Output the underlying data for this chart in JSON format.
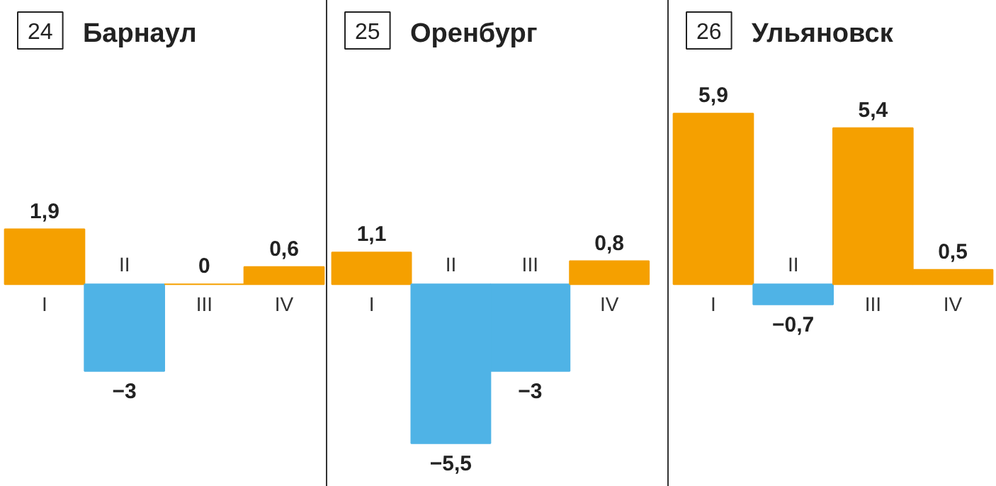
{
  "chart_data": [
    {
      "type": "bar",
      "title": "Барнаул",
      "annotations": [
        "24"
      ],
      "categories": [
        "I",
        "II",
        "III",
        "IV"
      ],
      "values": [
        1.9,
        -3,
        0,
        0.6
      ],
      "colors": [
        "#f5a000",
        "#4fb3e6",
        "#f5a000",
        "#f5a000"
      ],
      "value_labels": [
        "1,9",
        "−3",
        "0",
        "0,6"
      ],
      "ylim": [
        -7,
        9.8
      ],
      "tick_labels": false,
      "grid": false
    },
    {
      "type": "bar",
      "title": "Оренбург",
      "annotations": [
        "25"
      ],
      "categories": [
        "I",
        "II",
        "III",
        "IV"
      ],
      "values": [
        1.1,
        -5.5,
        -3,
        0.8
      ],
      "colors": [
        "#f5a000",
        "#4fb3e6",
        "#4fb3e6",
        "#f5a000"
      ],
      "value_labels": [
        "1,1",
        "−5,5",
        "−3",
        "0,8"
      ],
      "ylim": [
        -7,
        9.8
      ],
      "tick_labels": false,
      "grid": false
    },
    {
      "type": "bar",
      "title": "Ульяновск",
      "annotations": [
        "26"
      ],
      "categories": [
        "I",
        "II",
        "III",
        "IV"
      ],
      "values": [
        5.9,
        -0.7,
        5.4,
        0.5
      ],
      "colors": [
        "#f5a000",
        "#4fb3e6",
        "#f5a000",
        "#f5a000"
      ],
      "value_labels": [
        "5,9",
        "−0,7",
        "5,4",
        "0,5"
      ],
      "ylim": [
        -7,
        9.8
      ],
      "tick_labels": false,
      "grid": false
    }
  ]
}
